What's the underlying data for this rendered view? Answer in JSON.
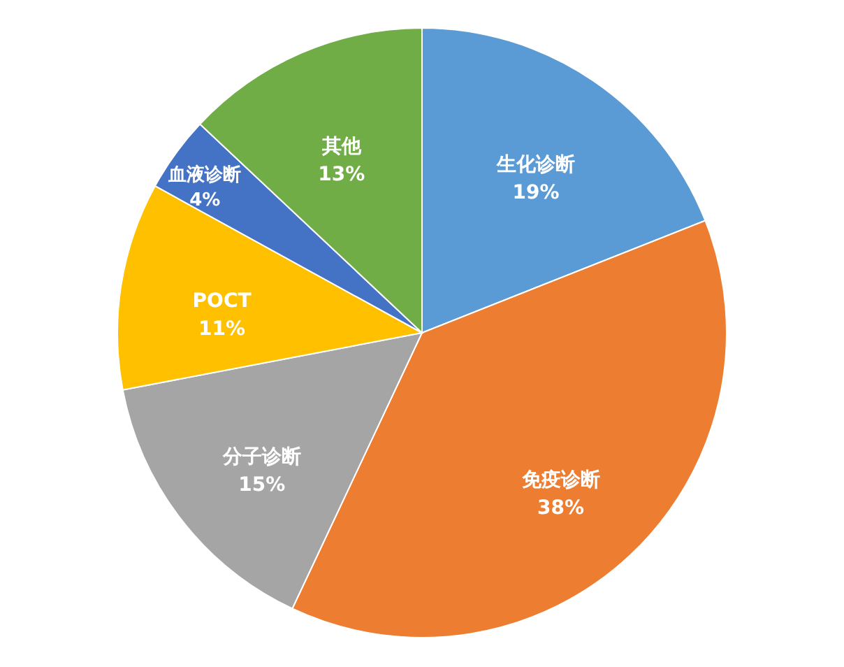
{
  "chart_data": {
    "type": "pie",
    "categories": [
      "生化诊断",
      "免疫诊断",
      "分子诊断",
      "POCT",
      "血液诊断",
      "其他"
    ],
    "values": [
      19,
      38,
      15,
      11,
      4,
      13
    ],
    "value_labels": [
      "19%",
      "38%",
      "15%",
      "11%",
      "4%",
      "13%"
    ],
    "colors": [
      "#5b9bd5",
      "#ed7d31",
      "#a5a5a5",
      "#ffc000",
      "#4472c4",
      "#70ad47"
    ]
  }
}
